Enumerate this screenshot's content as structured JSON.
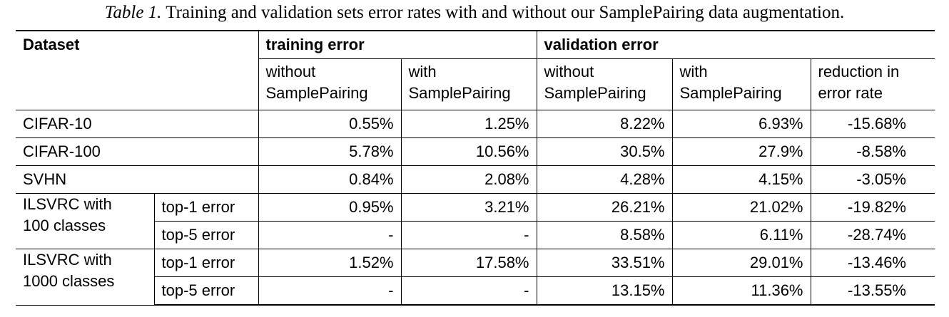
{
  "caption": {
    "label": "Table 1.",
    "text": "Training and validation sets error rates with and without our SamplePairing data augmentation."
  },
  "header": {
    "dataset": "Dataset",
    "training_error": "training error",
    "validation_error": "validation error",
    "sub": {
      "train_without": [
        "without",
        "SamplePairing"
      ],
      "train_with": [
        "with",
        "SamplePairing"
      ],
      "val_without": [
        "without",
        "SamplePairing"
      ],
      "val_with": [
        "with",
        "SamplePairing"
      ],
      "reduction": [
        "reduction in",
        "error rate"
      ]
    }
  },
  "rows": {
    "cifar10": {
      "name": "CIFAR-10",
      "values": [
        "0.55%",
        "1.25%",
        "8.22%",
        "6.93%",
        "-15.68%"
      ]
    },
    "cifar100": {
      "name": "CIFAR-100",
      "values": [
        "5.78%",
        "10.56%",
        "30.5%",
        "27.9%",
        "-8.58%"
      ]
    },
    "svhn": {
      "name": "SVHN",
      "values": [
        "0.84%",
        "2.08%",
        "4.28%",
        "4.15%",
        "-3.05%"
      ]
    },
    "ilsvrc100": {
      "name": [
        "ILSVRC with",
        "100 classes"
      ],
      "top1": {
        "label": "top-1 error",
        "values": [
          "0.95%",
          "3.21%",
          "26.21%",
          "21.02%",
          "-19.82%"
        ]
      },
      "top5": {
        "label": "top-5 error",
        "values": [
          "-",
          "-",
          "8.58%",
          "6.11%",
          "-28.74%"
        ]
      }
    },
    "ilsvrc1000": {
      "name": [
        "ILSVRC with",
        "1000 classes"
      ],
      "top1": {
        "label": "top-1 error",
        "values": [
          "1.52%",
          "17.58%",
          "33.51%",
          "29.01%",
          "-13.46%"
        ]
      },
      "top5": {
        "label": "top-5 error",
        "values": [
          "-",
          "-",
          "13.15%",
          "11.36%",
          "-13.55%"
        ]
      }
    }
  }
}
